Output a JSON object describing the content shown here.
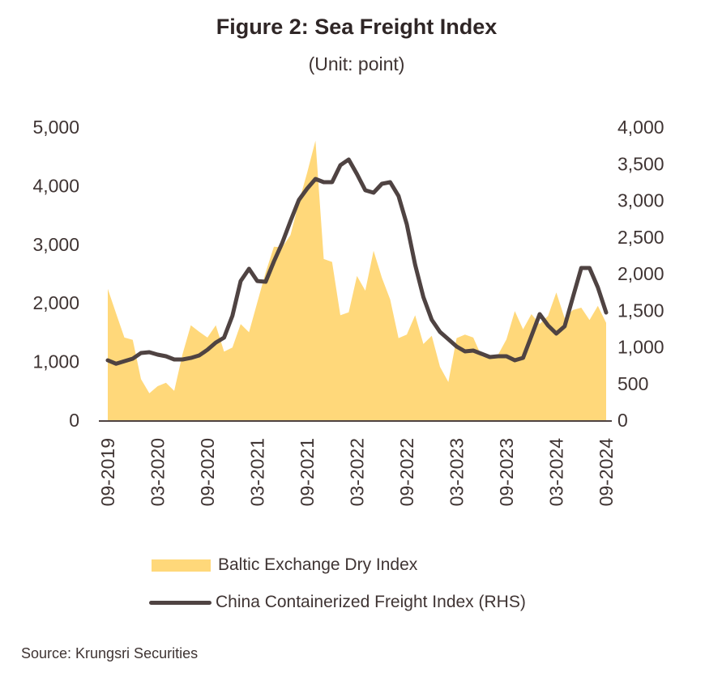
{
  "chart_data": {
    "type": "area+line",
    "title": "Figure 2: Sea Freight Index",
    "subtitle": "(Unit: point)",
    "source": "Source: Krungsri Securities",
    "x": [
      "09-2019",
      "10-2019",
      "11-2019",
      "12-2019",
      "01-2020",
      "02-2020",
      "03-2020",
      "04-2020",
      "05-2020",
      "06-2020",
      "07-2020",
      "08-2020",
      "09-2020",
      "10-2020",
      "11-2020",
      "12-2020",
      "01-2021",
      "02-2021",
      "03-2021",
      "04-2021",
      "05-2021",
      "06-2021",
      "07-2021",
      "08-2021",
      "09-2021",
      "10-2021",
      "11-2021",
      "12-2021",
      "01-2022",
      "02-2022",
      "03-2022",
      "04-2022",
      "05-2022",
      "06-2022",
      "07-2022",
      "08-2022",
      "09-2022",
      "10-2022",
      "11-2022",
      "12-2022",
      "01-2023",
      "02-2023",
      "03-2023",
      "04-2023",
      "05-2023",
      "06-2023",
      "07-2023",
      "08-2023",
      "09-2023",
      "10-2023",
      "11-2023",
      "12-2023",
      "01-2024",
      "02-2024",
      "03-2024",
      "04-2024",
      "05-2024",
      "06-2024",
      "07-2024",
      "08-2024",
      "09-2024"
    ],
    "x_tick_labels": [
      "09-2019",
      "03-2020",
      "09-2020",
      "03-2021",
      "09-2021",
      "03-2022",
      "09-2022",
      "03-2023",
      "09-2023",
      "03-2024",
      "09-2024"
    ],
    "y_left": {
      "ylim": [
        0,
        5000
      ],
      "ticks": [
        "0",
        "1,000",
        "2,000",
        "3,000",
        "4,000",
        "5,000"
      ]
    },
    "y_right": {
      "ylim": [
        0,
        4000
      ],
      "ticks": [
        "0",
        "500",
        "1,000",
        "1,500",
        "2,000",
        "2,500",
        "3,000",
        "3,500",
        "4,000"
      ]
    },
    "series": [
      {
        "name": "Baltic Exchange Dry Index",
        "type": "area",
        "axis": "left",
        "color": "#FFD87A",
        "values": [
          2240,
          1820,
          1410,
          1370,
          700,
          460,
          580,
          640,
          500,
          1130,
          1620,
          1510,
          1410,
          1620,
          1170,
          1240,
          1640,
          1500,
          2010,
          2520,
          2960,
          2950,
          3160,
          3720,
          4220,
          4770,
          2750,
          2700,
          1790,
          1840,
          2460,
          2210,
          2890,
          2430,
          2060,
          1400,
          1460,
          1790,
          1300,
          1440,
          910,
          650,
          1400,
          1460,
          1410,
          1090,
          1050,
          1120,
          1380,
          1860,
          1550,
          1810,
          1640,
          1780,
          2180,
          1740,
          1880,
          1920,
          1710,
          1950,
          1660
        ]
      },
      {
        "name": "China Containerized Freight Index (RHS)",
        "type": "line",
        "axis": "right",
        "color": "#4F4342",
        "values": [
          818,
          770,
          805,
          840,
          917,
          928,
          895,
          873,
          829,
          829,
          850,
          884,
          961,
          1060,
          1127,
          1425,
          1900,
          2066,
          1900,
          1890,
          2166,
          2420,
          2718,
          3005,
          3160,
          3293,
          3249,
          3249,
          3480,
          3558,
          3359,
          3138,
          3105,
          3226,
          3249,
          3060,
          2674,
          2122,
          1680,
          1370,
          1204,
          1105,
          1005,
          939,
          950,
          906,
          862,
          873,
          873,
          818,
          851,
          1149,
          1447,
          1293,
          1182,
          1282,
          1680,
          2077,
          2077,
          1812,
          1470
        ]
      }
    ],
    "legend": "bottom",
    "grid": false
  }
}
